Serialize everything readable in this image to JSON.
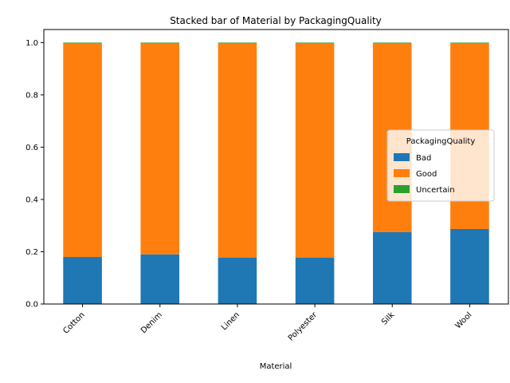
{
  "chart_data": {
    "type": "bar",
    "stacked": true,
    "title": "Stacked bar of Material by PackagingQuality",
    "xlabel": "Material",
    "ylabel": "",
    "ylim": [
      0,
      1.05
    ],
    "yticks": [
      "0.0",
      "0.2",
      "0.4",
      "0.6",
      "0.8",
      "1.0"
    ],
    "grid": false,
    "categories": [
      "Cotton",
      "Denim",
      "Linen",
      "Polyester",
      "Silk",
      "Wool"
    ],
    "series": [
      {
        "name": "Bad",
        "color": "#1f77b4",
        "values": [
          0.18,
          0.19,
          0.177,
          0.177,
          0.275,
          0.287
        ]
      },
      {
        "name": "Good",
        "color": "#ff7f0e",
        "values": [
          0.817,
          0.807,
          0.82,
          0.82,
          0.722,
          0.71
        ]
      },
      {
        "name": "Uncertain",
        "color": "#2ca02c",
        "values": [
          0.003,
          0.003,
          0.003,
          0.003,
          0.003,
          0.003
        ]
      }
    ],
    "legend": {
      "title": "PackagingQuality",
      "placement": "center-right"
    }
  }
}
